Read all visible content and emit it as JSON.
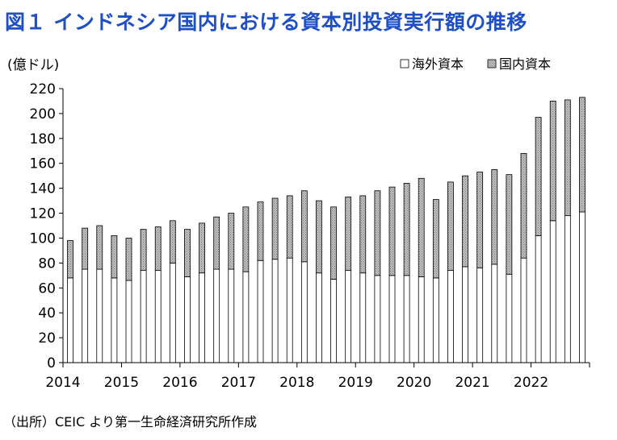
{
  "chart_data": {
    "type": "bar",
    "stacked": true,
    "title": "図１ インドネシア国内における資本別投資実行額の推移",
    "ylabel": "(億ドル)",
    "xlabel": "",
    "ylim": [
      0,
      220
    ],
    "yticks": [
      0,
      20,
      40,
      60,
      80,
      100,
      120,
      140,
      160,
      180,
      200,
      220
    ],
    "grid": false,
    "legend_position": "top-right",
    "year_labels": [
      "2014",
      "2015",
      "2016",
      "2017",
      "2018",
      "2019",
      "2020",
      "2021",
      "2022"
    ],
    "quarters_per_year": 4,
    "categories": [
      "2014Q1",
      "2014Q2",
      "2014Q3",
      "2014Q4",
      "2015Q1",
      "2015Q2",
      "2015Q3",
      "2015Q4",
      "2016Q1",
      "2016Q2",
      "2016Q3",
      "2016Q4",
      "2017Q1",
      "2017Q2",
      "2017Q3",
      "2017Q4",
      "2018Q1",
      "2018Q2",
      "2018Q3",
      "2018Q4",
      "2019Q1",
      "2019Q2",
      "2019Q3",
      "2019Q4",
      "2020Q1",
      "2020Q2",
      "2020Q3",
      "2020Q4",
      "2021Q1",
      "2021Q2",
      "2021Q3",
      "2021Q4",
      "2022Q1",
      "2022Q2",
      "2022Q3",
      "2022Q4"
    ],
    "series": [
      {
        "name": "海外資本",
        "fill": "white",
        "values": [
          68,
          75,
          75,
          68,
          66,
          74,
          74,
          80,
          69,
          72,
          75,
          75,
          73,
          82,
          83,
          84,
          81,
          72,
          67,
          74,
          72,
          70,
          70,
          70,
          69,
          68,
          74,
          77,
          76,
          79,
          71,
          84,
          102,
          114,
          118,
          121
        ]
      },
      {
        "name": "国内資本",
        "fill": "hatched-gray",
        "values": [
          30,
          33,
          35,
          34,
          34,
          33,
          35,
          34,
          38,
          40,
          42,
          45,
          52,
          47,
          49,
          50,
          57,
          58,
          58,
          59,
          62,
          68,
          71,
          74,
          79,
          63,
          71,
          73,
          77,
          76,
          80,
          84,
          95,
          96,
          93,
          92
        ]
      }
    ]
  },
  "source": "（出所）CEIC より第一生命経済研究所作成"
}
